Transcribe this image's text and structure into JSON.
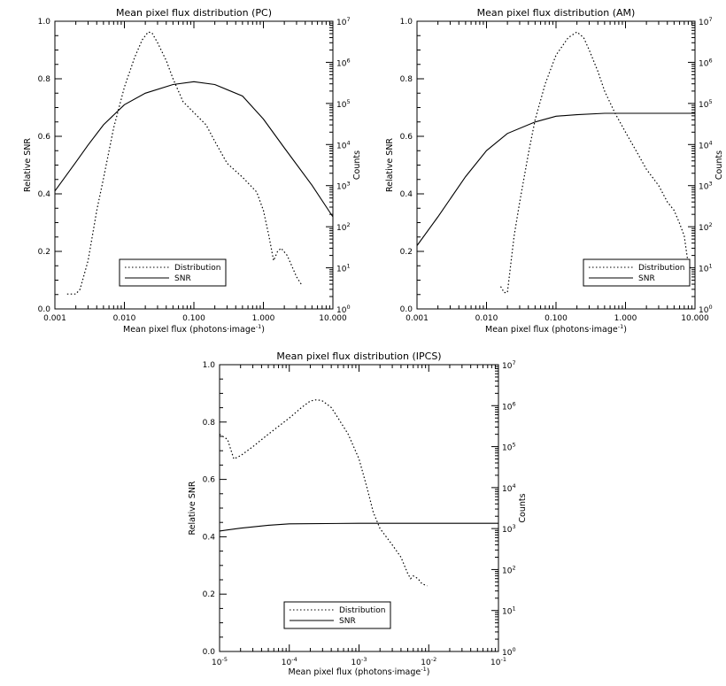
{
  "chart_data": [
    {
      "type": "line",
      "title": "Mean pixel flux distribution (PC)",
      "xlabel": "Mean pixel flux (photons·image",
      "xlabel_sup": "-1",
      "xlabel_close": ")",
      "ylabel": "Relative SNR",
      "y2label": "Counts",
      "xscale": "log",
      "xlim": [
        0.001,
        10
      ],
      "ylim": [
        0,
        1.0
      ],
      "y2scale": "log",
      "y2lim": [
        1,
        10000000
      ],
      "xticks": [
        {
          "v": 0.001,
          "label": "0.001"
        },
        {
          "v": 0.01,
          "label": "0.010"
        },
        {
          "v": 0.1,
          "label": "0.100"
        },
        {
          "v": 1,
          "label": "1.000"
        },
        {
          "v": 10,
          "label": "10.000"
        }
      ],
      "yticks": [
        {
          "v": 0.0,
          "label": "0.0"
        },
        {
          "v": 0.2,
          "label": "0.2"
        },
        {
          "v": 0.4,
          "label": "0.4"
        },
        {
          "v": 0.6,
          "label": "0.6"
        },
        {
          "v": 0.8,
          "label": "0.8"
        },
        {
          "v": 1.0,
          "label": "1.0"
        }
      ],
      "y2ticks": [
        {
          "v": 1,
          "base": "10",
          "exp": "0"
        },
        {
          "v": 10,
          "base": "10",
          "exp": "1"
        },
        {
          "v": 100,
          "base": "10",
          "exp": "2"
        },
        {
          "v": 1000,
          "base": "10",
          "exp": "3"
        },
        {
          "v": 10000,
          "base": "10",
          "exp": "4"
        },
        {
          "v": 100000,
          "base": "10",
          "exp": "5"
        },
        {
          "v": 1000000,
          "base": "10",
          "exp": "6"
        },
        {
          "v": 10000000,
          "base": "10",
          "exp": "7"
        }
      ],
      "legend_position": "bottom-center",
      "series": [
        {
          "name": "Distribution",
          "style": "dotted",
          "axis": "y2",
          "points": [
            [
              0.0015,
              2.3
            ],
            [
              0.002,
              2.3
            ],
            [
              0.0023,
              3
            ],
            [
              0.003,
              15
            ],
            [
              0.004,
              250
            ],
            [
              0.005,
              1500
            ],
            [
              0.007,
              25000
            ],
            [
              0.01,
              250000
            ],
            [
              0.014,
              1300000
            ],
            [
              0.018,
              3500000
            ],
            [
              0.022,
              5500000
            ],
            [
              0.025,
              5200000
            ],
            [
              0.03,
              3000000
            ],
            [
              0.04,
              1100000
            ],
            [
              0.05,
              400000
            ],
            [
              0.07,
              110000
            ],
            [
              0.1,
              60000
            ],
            [
              0.15,
              30000
            ],
            [
              0.2,
              12000
            ],
            [
              0.3,
              3500
            ],
            [
              0.5,
              1600
            ],
            [
              0.8,
              700
            ],
            [
              1.0,
              250
            ],
            [
              1.2,
              60
            ],
            [
              1.4,
              15
            ],
            [
              1.6,
              25
            ],
            [
              1.8,
              30
            ],
            [
              2.2,
              20
            ],
            [
              3.0,
              6
            ],
            [
              3.5,
              4
            ]
          ]
        },
        {
          "name": "SNR",
          "style": "solid",
          "axis": "y",
          "points": [
            [
              0.001,
              0.41
            ],
            [
              0.002,
              0.51
            ],
            [
              0.003,
              0.57
            ],
            [
              0.005,
              0.64
            ],
            [
              0.01,
              0.71
            ],
            [
              0.02,
              0.75
            ],
            [
              0.05,
              0.78
            ],
            [
              0.1,
              0.79
            ],
            [
              0.2,
              0.78
            ],
            [
              0.5,
              0.74
            ],
            [
              1.0,
              0.66
            ],
            [
              2.0,
              0.56
            ],
            [
              5.0,
              0.43
            ],
            [
              10.0,
              0.32
            ]
          ]
        }
      ]
    },
    {
      "type": "line",
      "title": "Mean pixel flux distribution (AM)",
      "xlabel": "Mean pixel flux (photons·image",
      "xlabel_sup": "-1",
      "xlabel_close": ")",
      "ylabel": "Relative SNR",
      "y2label": "Counts",
      "xscale": "log",
      "xlim": [
        0.001,
        10
      ],
      "ylim": [
        0,
        1.0
      ],
      "y2scale": "log",
      "y2lim": [
        1,
        10000000
      ],
      "xticks": [
        {
          "v": 0.001,
          "label": "0.001"
        },
        {
          "v": 0.01,
          "label": "0.010"
        },
        {
          "v": 0.1,
          "label": "0.100"
        },
        {
          "v": 1,
          "label": "1.000"
        },
        {
          "v": 10,
          "label": "10.000"
        }
      ],
      "yticks": [
        {
          "v": 0.0,
          "label": "0.0"
        },
        {
          "v": 0.2,
          "label": "0.2"
        },
        {
          "v": 0.4,
          "label": "0.4"
        },
        {
          "v": 0.6,
          "label": "0.6"
        },
        {
          "v": 0.8,
          "label": "0.8"
        },
        {
          "v": 1.0,
          "label": "1.0"
        }
      ],
      "y2ticks": [
        {
          "v": 1,
          "base": "10",
          "exp": "0"
        },
        {
          "v": 10,
          "base": "10",
          "exp": "1"
        },
        {
          "v": 100,
          "base": "10",
          "exp": "2"
        },
        {
          "v": 1000,
          "base": "10",
          "exp": "3"
        },
        {
          "v": 10000,
          "base": "10",
          "exp": "4"
        },
        {
          "v": 100000,
          "base": "10",
          "exp": "5"
        },
        {
          "v": 1000000,
          "base": "10",
          "exp": "6"
        },
        {
          "v": 10000000,
          "base": "10",
          "exp": "7"
        }
      ],
      "legend_position": "bottom-right",
      "series": [
        {
          "name": "Distribution",
          "style": "dotted",
          "axis": "y2",
          "points": [
            [
              0.016,
              3.5
            ],
            [
              0.018,
              2.5
            ],
            [
              0.02,
              2.5
            ],
            [
              0.025,
              60
            ],
            [
              0.03,
              400
            ],
            [
              0.04,
              6000
            ],
            [
              0.05,
              40000
            ],
            [
              0.07,
              300000
            ],
            [
              0.1,
              1500000
            ],
            [
              0.15,
              4000000
            ],
            [
              0.2,
              5500000
            ],
            [
              0.25,
              4000000
            ],
            [
              0.3,
              2000000
            ],
            [
              0.4,
              600000
            ],
            [
              0.5,
              200000
            ],
            [
              0.7,
              60000
            ],
            [
              1.0,
              20000
            ],
            [
              1.5,
              6000
            ],
            [
              2.0,
              2500
            ],
            [
              3.0,
              1000
            ],
            [
              4.0,
              400
            ],
            [
              5.0,
              250
            ],
            [
              6.0,
              120
            ],
            [
              7.0,
              60
            ],
            [
              8.0,
              12
            ],
            [
              8.5,
              10
            ]
          ]
        },
        {
          "name": "SNR",
          "style": "solid",
          "axis": "y",
          "points": [
            [
              0.001,
              0.22
            ],
            [
              0.002,
              0.32
            ],
            [
              0.005,
              0.46
            ],
            [
              0.01,
              0.55
            ],
            [
              0.02,
              0.61
            ],
            [
              0.05,
              0.65
            ],
            [
              0.1,
              0.67
            ],
            [
              0.2,
              0.675
            ],
            [
              0.5,
              0.68
            ],
            [
              1.0,
              0.68
            ],
            [
              10.0,
              0.68
            ]
          ]
        }
      ]
    },
    {
      "type": "line",
      "title": "Mean pixel flux distribution (IPCS)",
      "xlabel": "Mean pixel flux (photons·image",
      "xlabel_sup": "-1",
      "xlabel_close": ")",
      "ylabel": "Relative SNR",
      "y2label": "Counts",
      "xscale": "log",
      "xlim": [
        1e-05,
        0.1
      ],
      "ylim": [
        0,
        1.0
      ],
      "y2scale": "log",
      "y2lim": [
        1,
        10000000
      ],
      "xticks": [
        {
          "v": 1e-05,
          "base": "10",
          "exp": "-5"
        },
        {
          "v": 0.0001,
          "base": "10",
          "exp": "-4"
        },
        {
          "v": 0.001,
          "base": "10",
          "exp": "-3"
        },
        {
          "v": 0.01,
          "base": "10",
          "exp": "-2"
        },
        {
          "v": 0.1,
          "base": "10",
          "exp": "-1"
        }
      ],
      "yticks": [
        {
          "v": 0.0,
          "label": "0.0"
        },
        {
          "v": 0.2,
          "label": "0.2"
        },
        {
          "v": 0.4,
          "label": "0.4"
        },
        {
          "v": 0.6,
          "label": "0.6"
        },
        {
          "v": 0.8,
          "label": "0.8"
        },
        {
          "v": 1.0,
          "label": "1.0"
        }
      ],
      "y2ticks": [
        {
          "v": 1,
          "base": "10",
          "exp": "0"
        },
        {
          "v": 10,
          "base": "10",
          "exp": "1"
        },
        {
          "v": 100,
          "base": "10",
          "exp": "2"
        },
        {
          "v": 1000,
          "base": "10",
          "exp": "3"
        },
        {
          "v": 10000,
          "base": "10",
          "exp": "4"
        },
        {
          "v": 100000,
          "base": "10",
          "exp": "5"
        },
        {
          "v": 1000000,
          "base": "10",
          "exp": "6"
        },
        {
          "v": 10000000,
          "base": "10",
          "exp": "7"
        }
      ],
      "legend_position": "bottom-center",
      "series": [
        {
          "name": "Distribution",
          "style": "dotted",
          "axis": "y2",
          "points": [
            [
              1e-05,
              200000
            ],
            [
              1.3e-05,
              150000
            ],
            [
              1.6e-05,
              50000
            ],
            [
              2e-05,
              60000
            ],
            [
              3e-05,
              100000
            ],
            [
              5e-05,
              200000
            ],
            [
              0.0001,
              500000
            ],
            [
              0.00015,
              900000
            ],
            [
              0.0002,
              1300000
            ],
            [
              0.00025,
              1400000
            ],
            [
              0.0003,
              1300000
            ],
            [
              0.0004,
              900000
            ],
            [
              0.0005,
              500000
            ],
            [
              0.0007,
              200000
            ],
            [
              0.001,
              50000
            ],
            [
              0.0013,
              10000
            ],
            [
              0.0016,
              2500
            ],
            [
              0.002,
              1000
            ],
            [
              0.003,
              400
            ],
            [
              0.004,
              200
            ],
            [
              0.005,
              80
            ],
            [
              0.0055,
              60
            ],
            [
              0.006,
              70
            ],
            [
              0.007,
              60
            ],
            [
              0.008,
              45
            ],
            [
              0.0095,
              40
            ]
          ]
        },
        {
          "name": "SNR",
          "style": "solid",
          "axis": "y",
          "points": [
            [
              1e-05,
              0.42
            ],
            [
              2e-05,
              0.43
            ],
            [
              5e-05,
              0.44
            ],
            [
              0.0001,
              0.445
            ],
            [
              0.001,
              0.447
            ],
            [
              0.01,
              0.447
            ],
            [
              0.1,
              0.447
            ]
          ]
        }
      ]
    }
  ]
}
